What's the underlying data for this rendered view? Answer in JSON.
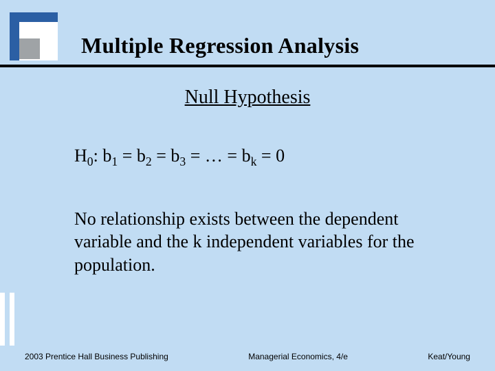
{
  "slide": {
    "title": "Multiple Regression Analysis",
    "subtitle": "Null Hypothesis",
    "equation": {
      "lhs": "H",
      "lhs_sub": "0",
      "b": "b",
      "sub1": "1",
      "sub2": "2",
      "sub3": "3",
      "subk": "k",
      "ellipsis": "…",
      "eq": "=",
      "zero": "0",
      "colon": ": "
    },
    "body": "No relationship exists between the dependent variable and the k independent variables for the population."
  },
  "footer": {
    "left": "2003 Prentice Hall Business Publishing",
    "center": "Managerial Economics, 4/e",
    "right": "Keat/Young"
  },
  "style": {
    "background_color": "#c1dcf3",
    "logo_primary": "#2b5fa4",
    "logo_secondary": "#9fa3a6",
    "rule_color": "#000000",
    "title_fontsize_pt": 24,
    "subtitle_fontsize_pt": 21,
    "body_fontsize_pt": 20,
    "footer_fontsize_pt": 9,
    "font_family_body": "Times New Roman",
    "font_family_footer": "Arial"
  }
}
